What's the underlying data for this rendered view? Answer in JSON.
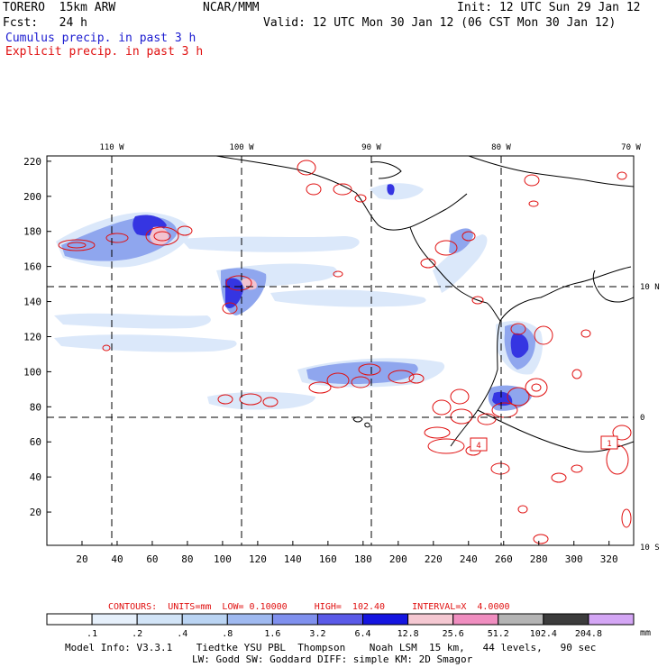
{
  "header": {
    "model": "TORERO  15km ARW",
    "org": "NCAR/MMM",
    "init": "Init: 12 UTC Sun 29 Jan 12",
    "fcst": "Fcst:   24 h",
    "valid": "Valid: 12 UTC Mon 30 Jan 12 (06 CST Mon 30 Jan 12)",
    "line_cumulus": "Cumulus precip. in past 3 h",
    "line_explicit": "Explicit precip. in past 3 h"
  },
  "colors": {
    "cumulus": "#1a1ad0",
    "explicit": "#e01010"
  },
  "axes": {
    "lon_labels": [
      "110 W",
      "100 W",
      "90 W",
      "80 W",
      "70 W"
    ],
    "lat_labels": [
      "10 N",
      "0",
      "10 S"
    ],
    "y_ticks": [
      "220",
      "200",
      "180",
      "160",
      "140",
      "120",
      "100",
      "80",
      "60",
      "40",
      "20"
    ],
    "x_ticks": [
      "20",
      "40",
      "60",
      "80",
      "100",
      "120",
      "140",
      "160",
      "180",
      "200",
      "220",
      "240",
      "260",
      "280",
      "300",
      "320"
    ]
  },
  "markers": [
    "4",
    "1"
  ],
  "contour_info": {
    "label": "CONTOURS:  UNITS=mm  LOW= 0.10000     HIGH=  102.40     INTERVAL=X  4.0000"
  },
  "colorbar": {
    "labels": [
      ".1",
      ".2",
      ".4",
      ".8",
      "1.6",
      "3.2",
      "6.4",
      "12.8",
      "25.6",
      "51.2",
      "102.4",
      "204.8"
    ],
    "units": "mm",
    "colors": [
      "#ffffff",
      "#e6f0fb",
      "#d2e4f7",
      "#bad4f3",
      "#9fb9f0",
      "#7f90ee",
      "#5a5ae8",
      "#1515e0",
      "#f5c8d2",
      "#f08ec0",
      "#b4b4b4",
      "#3c3c3c",
      "#d4a6f5"
    ]
  },
  "footer": {
    "line1": "Model Info: V3.3.1    Tiedtke YSU PBL  Thompson    Noah LSM  15 km,   44 levels,   90 sec",
    "line2": "LW: Godd SW: Goddard DIFF: simple KM: 2D Smagor"
  }
}
